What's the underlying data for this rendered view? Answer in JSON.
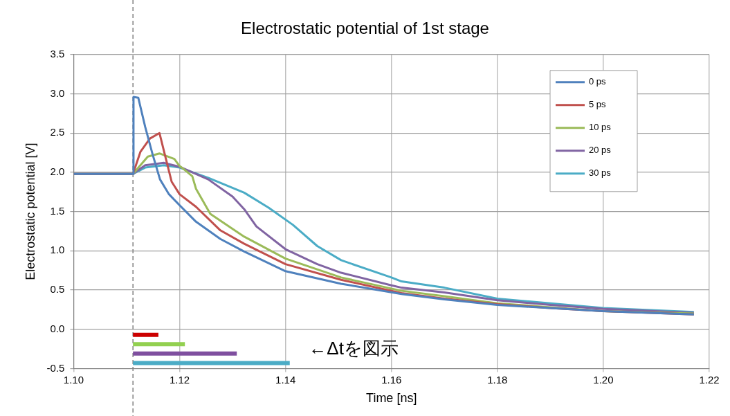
{
  "chart_data": {
    "type": "line",
    "title": "Electrostatic potential of 1st stage",
    "xlabel": "Time [ns]",
    "ylabel": "Electrostatic potential [V]",
    "series": [
      {
        "name": "0 ps",
        "color": "#4f81bd",
        "x": [
          1.1,
          1.1112,
          1.1113,
          1.1122,
          1.1135,
          1.1149,
          1.1163,
          1.118,
          1.12,
          1.1231,
          1.1277,
          1.1322,
          1.14,
          1.1505,
          1.1619,
          1.17,
          1.18,
          1.19,
          1.2,
          1.2171
        ],
        "values": [
          1.98,
          1.98,
          2.96,
          2.95,
          2.58,
          2.23,
          1.91,
          1.72,
          1.58,
          1.37,
          1.15,
          0.99,
          0.74,
          0.58,
          0.45,
          0.38,
          0.31,
          0.27,
          0.23,
          0.19
        ]
      },
      {
        "name": "5 ps",
        "color": "#c0504d",
        "x": [
          1.1,
          1.1112,
          1.1126,
          1.1144,
          1.1162,
          1.1172,
          1.1185,
          1.12,
          1.1231,
          1.1277,
          1.1322,
          1.14,
          1.1505,
          1.1619,
          1.17,
          1.18,
          1.19,
          1.2,
          1.2171
        ],
        "values": [
          1.98,
          1.98,
          2.26,
          2.43,
          2.5,
          2.23,
          1.88,
          1.72,
          1.56,
          1.26,
          1.09,
          0.83,
          0.63,
          0.46,
          0.39,
          0.32,
          0.27,
          0.23,
          0.19
        ]
      },
      {
        "name": "10 ps",
        "color": "#9bbb59",
        "x": [
          1.1,
          1.1112,
          1.114,
          1.1162,
          1.119,
          1.12,
          1.1208,
          1.1224,
          1.1231,
          1.1258,
          1.1322,
          1.14,
          1.1505,
          1.1619,
          1.17,
          1.18,
          1.19,
          1.2,
          1.2171
        ],
        "values": [
          1.98,
          1.98,
          2.2,
          2.24,
          2.17,
          2.08,
          2.04,
          1.95,
          1.79,
          1.47,
          1.18,
          0.9,
          0.66,
          0.49,
          0.42,
          0.33,
          0.28,
          0.23,
          0.2
        ]
      },
      {
        "name": "20 ps",
        "color": "#8064a2",
        "x": [
          1.1,
          1.1112,
          1.1135,
          1.117,
          1.12,
          1.1254,
          1.13,
          1.1322,
          1.1345,
          1.14,
          1.146,
          1.1505,
          1.16,
          1.1619,
          1.17,
          1.18,
          1.19,
          1.2,
          1.2171
        ],
        "values": [
          1.98,
          1.98,
          2.09,
          2.12,
          2.07,
          1.91,
          1.69,
          1.53,
          1.31,
          1.02,
          0.83,
          0.72,
          0.56,
          0.53,
          0.47,
          0.37,
          0.31,
          0.26,
          0.21
        ]
      },
      {
        "name": "30 ps",
        "color": "#4bacc6",
        "x": [
          1.1,
          1.1112,
          1.1135,
          1.117,
          1.12,
          1.1254,
          1.1322,
          1.1368,
          1.1414,
          1.146,
          1.1505,
          1.16,
          1.1619,
          1.17,
          1.18,
          1.19,
          1.2,
          1.2171
        ],
        "values": [
          1.98,
          1.98,
          2.06,
          2.09,
          2.06,
          1.93,
          1.74,
          1.55,
          1.33,
          1.06,
          0.88,
          0.66,
          0.61,
          0.53,
          0.39,
          0.33,
          0.27,
          0.22
        ]
      },
      {
        "color": "#cc0000",
        "x": [
          1.1112,
          1.116
        ],
        "values": [
          -0.07,
          -0.07
        ]
      },
      {
        "color": "#92d050",
        "x": [
          1.1112,
          1.121
        ],
        "values": [
          -0.19,
          -0.19
        ]
      },
      {
        "color": "#7f4f9f",
        "x": [
          1.1112,
          1.1308
        ],
        "values": [
          -0.31,
          -0.31
        ]
      },
      {
        "color": "#4bacc6",
        "x": [
          1.1112,
          1.1408
        ],
        "values": [
          -0.43,
          -0.43
        ]
      }
    ],
    "xlim": [
      1.1,
      1.22
    ],
    "xticks": [
      {
        "value": 1.1,
        "label": "1.10"
      },
      {
        "value": 1.12,
        "label": "1.12"
      },
      {
        "value": 1.14,
        "label": "1.14"
      },
      {
        "value": 1.16,
        "label": "1.16"
      },
      {
        "value": 1.18,
        "label": "1.18"
      },
      {
        "value": 1.2,
        "label": "1.20"
      },
      {
        "value": 1.22,
        "label": "1.22"
      }
    ],
    "ylim": [
      -0.5,
      3.5
    ],
    "yticks": [
      {
        "value": -0.5,
        "label": "-0.5"
      },
      {
        "value": 0,
        "label": "0.0"
      },
      {
        "value": 0.5,
        "label": "0.5"
      },
      {
        "value": 1,
        "label": "1.0"
      },
      {
        "value": 1.5,
        "label": "1.5"
      },
      {
        "value": 2,
        "label": "2.0"
      },
      {
        "value": 2.5,
        "label": "2.5"
      },
      {
        "value": 3,
        "label": "3.0"
      },
      {
        "value": 3.5,
        "label": "3.5"
      }
    ],
    "ref_lines": [
      {
        "axis": "x",
        "value": 1.1112,
        "color": "#808080",
        "line_style": "dashed"
      }
    ],
    "annotations": [
      "←Δtを図示"
    ],
    "grid": true,
    "legend": "top right",
    "marker": "none",
    "line_style": "solid"
  }
}
